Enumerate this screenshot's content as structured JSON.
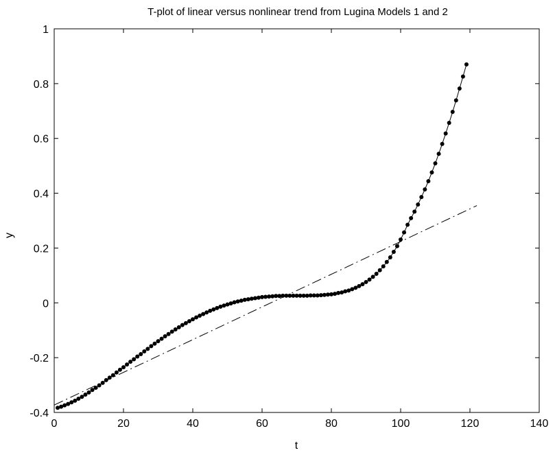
{
  "chart_data": {
    "type": "line",
    "title": "T-plot of linear versus nonlinear trend from Lugina Models 1 and 2",
    "xlabel": "t",
    "ylabel": "y",
    "xlim": [
      0,
      140
    ],
    "ylim": [
      -0.4,
      1
    ],
    "xticks": [
      0,
      20,
      40,
      60,
      80,
      100,
      120,
      140
    ],
    "yticks": [
      -0.4,
      -0.2,
      0,
      0.2,
      0.4,
      0.6,
      0.8,
      1
    ],
    "xtick_labels": [
      "0",
      "20",
      "40",
      "60",
      "80",
      "100",
      "120",
      "140"
    ],
    "ytick_labels": [
      "-0.4",
      "-0.2",
      "0",
      "0.2",
      "0.4",
      "0.6",
      "0.8",
      "1"
    ],
    "grid": false,
    "legend": "none",
    "series": [
      {
        "style": "dots-with-thin-line",
        "color": "#000000",
        "x": [
          1,
          2,
          3,
          4,
          5,
          6,
          7,
          8,
          9,
          10,
          11,
          12,
          13,
          14,
          15,
          16,
          17,
          18,
          19,
          20,
          21,
          22,
          23,
          24,
          25,
          26,
          27,
          28,
          29,
          30,
          31,
          32,
          33,
          34,
          35,
          36,
          37,
          38,
          39,
          40,
          41,
          42,
          43,
          44,
          45,
          46,
          47,
          48,
          49,
          50,
          51,
          52,
          53,
          54,
          55,
          56,
          57,
          58,
          59,
          60,
          61,
          62,
          63,
          64,
          65,
          66,
          67,
          68,
          69,
          70,
          71,
          72,
          73,
          74,
          75,
          76,
          77,
          78,
          79,
          80,
          81,
          82,
          83,
          84,
          85,
          86,
          87,
          88,
          89,
          90,
          91,
          92,
          93,
          94,
          95,
          96,
          97,
          98,
          99,
          100,
          101,
          102,
          103,
          104,
          105,
          106,
          107,
          108,
          109,
          110,
          111,
          112,
          113,
          114,
          115,
          116,
          117,
          118,
          119
        ],
        "y": [
          -0.383,
          -0.379,
          -0.374,
          -0.369,
          -0.363,
          -0.357,
          -0.35,
          -0.343,
          -0.335,
          -0.327,
          -0.318,
          -0.31,
          -0.301,
          -0.292,
          -0.282,
          -0.273,
          -0.264,
          -0.254,
          -0.244,
          -0.235,
          -0.225,
          -0.215,
          -0.206,
          -0.196,
          -0.187,
          -0.177,
          -0.168,
          -0.158,
          -0.149,
          -0.14,
          -0.131,
          -0.122,
          -0.114,
          -0.105,
          -0.097,
          -0.089,
          -0.081,
          -0.074,
          -0.067,
          -0.06,
          -0.053,
          -0.047,
          -0.041,
          -0.035,
          -0.029,
          -0.024,
          -0.019,
          -0.014,
          -0.01,
          -0.006,
          -0.002,
          0.002,
          0.005,
          0.008,
          0.011,
          0.013,
          0.015,
          0.017,
          0.019,
          0.021,
          0.022,
          0.023,
          0.024,
          0.025,
          0.025,
          0.026,
          0.026,
          0.026,
          0.026,
          0.026,
          0.026,
          0.026,
          0.026,
          0.027,
          0.027,
          0.027,
          0.028,
          0.029,
          0.03,
          0.031,
          0.033,
          0.036,
          0.038,
          0.042,
          0.045,
          0.05,
          0.055,
          0.061,
          0.068,
          0.076,
          0.085,
          0.095,
          0.106,
          0.119,
          0.133,
          0.149,
          0.166,
          0.186,
          0.207,
          0.231,
          0.257,
          0.285,
          0.309,
          0.333,
          0.359,
          0.386,
          0.414,
          0.444,
          0.476,
          0.509,
          0.544,
          0.58,
          0.618,
          0.657,
          0.697,
          0.739,
          0.782,
          0.826,
          0.87
        ]
      },
      {
        "style": "dashed",
        "color": "#000000",
        "x": [
          0,
          122
        ],
        "y": [
          -0.373,
          0.355
        ]
      }
    ]
  }
}
